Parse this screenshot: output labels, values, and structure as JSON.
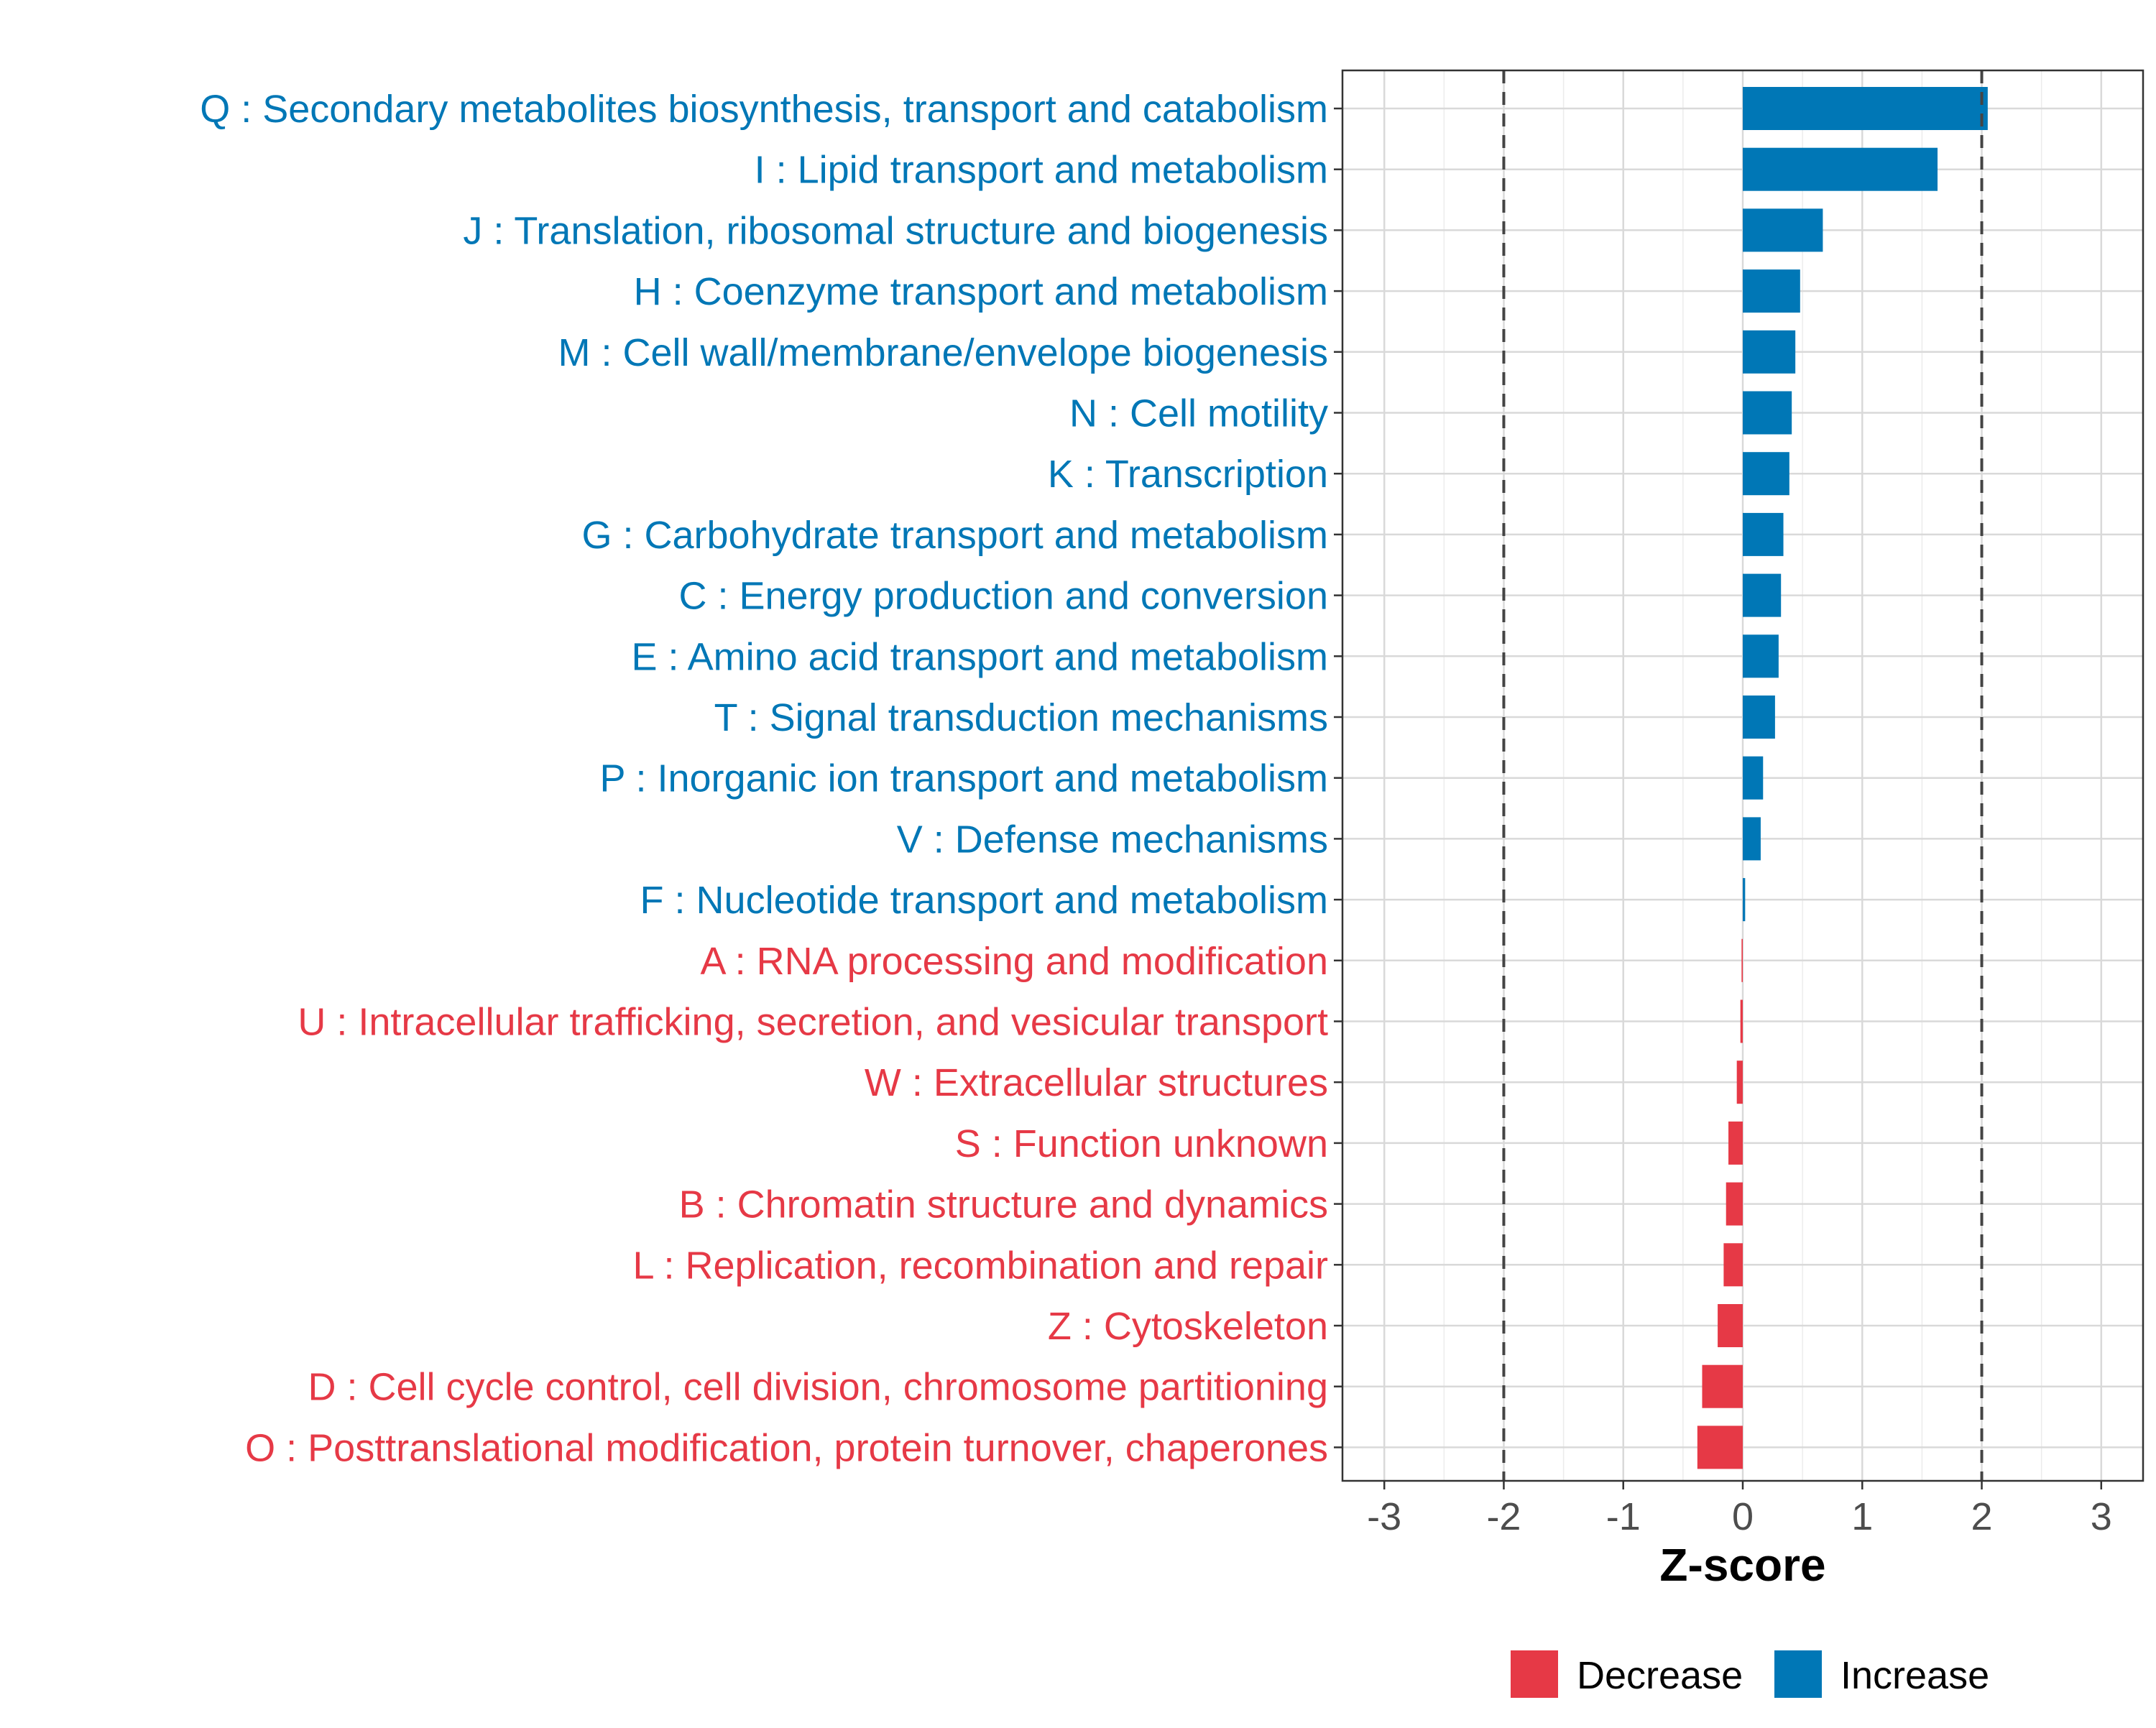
{
  "chart_data": {
    "type": "bar",
    "orientation": "horizontal",
    "xlabel": "Z-score",
    "xlim": [
      -3.35,
      3.35
    ],
    "xticks": [
      -3,
      -2,
      -1,
      0,
      1,
      2,
      3
    ],
    "reference_lines": [
      -2,
      2
    ],
    "grid": true,
    "legend_position": "bottom",
    "legend": [
      {
        "key": "decrease",
        "label": "Decrease",
        "color": "#E63946"
      },
      {
        "key": "increase",
        "label": "Increase",
        "color": "#0077B6"
      }
    ],
    "categories": [
      {
        "label": "Q : Secondary metabolites biosynthesis, transport and catabolism",
        "value": 2.05,
        "group": "increase"
      },
      {
        "label": "I : Lipid transport and metabolism",
        "value": 1.63,
        "group": "increase"
      },
      {
        "label": "J : Translation, ribosomal structure and biogenesis",
        "value": 0.67,
        "group": "increase"
      },
      {
        "label": "H : Coenzyme transport and metabolism",
        "value": 0.48,
        "group": "increase"
      },
      {
        "label": "M : Cell wall/membrane/envelope biogenesis",
        "value": 0.44,
        "group": "increase"
      },
      {
        "label": "N : Cell motility",
        "value": 0.41,
        "group": "increase"
      },
      {
        "label": "K : Transcription",
        "value": 0.39,
        "group": "increase"
      },
      {
        "label": "G : Carbohydrate transport and metabolism",
        "value": 0.34,
        "group": "increase"
      },
      {
        "label": "C : Energy production and conversion",
        "value": 0.32,
        "group": "increase"
      },
      {
        "label": "E : Amino acid transport and metabolism",
        "value": 0.3,
        "group": "increase"
      },
      {
        "label": "T : Signal transduction mechanisms",
        "value": 0.27,
        "group": "increase"
      },
      {
        "label": "P : Inorganic ion transport and metabolism",
        "value": 0.17,
        "group": "increase"
      },
      {
        "label": "V : Defense mechanisms",
        "value": 0.15,
        "group": "increase"
      },
      {
        "label": "F : Nucleotide transport and metabolism",
        "value": 0.02,
        "group": "increase"
      },
      {
        "label": "A : RNA processing and modification",
        "value": -0.01,
        "group": "decrease"
      },
      {
        "label": "U : Intracellular trafficking, secretion, and vesicular transport",
        "value": -0.02,
        "group": "decrease"
      },
      {
        "label": "W : Extracellular structures",
        "value": -0.05,
        "group": "decrease"
      },
      {
        "label": "S : Function unknown",
        "value": -0.12,
        "group": "decrease"
      },
      {
        "label": "B : Chromatin structure and dynamics",
        "value": -0.14,
        "group": "decrease"
      },
      {
        "label": "L : Replication, recombination and repair",
        "value": -0.16,
        "group": "decrease"
      },
      {
        "label": "Z : Cytoskeleton",
        "value": -0.21,
        "group": "decrease"
      },
      {
        "label": "D : Cell cycle control, cell division, chromosome partitioning",
        "value": -0.34,
        "group": "decrease"
      },
      {
        "label": "O : Posttranslational modification, protein turnover, chaperones",
        "value": -0.38,
        "group": "decrease"
      }
    ]
  }
}
